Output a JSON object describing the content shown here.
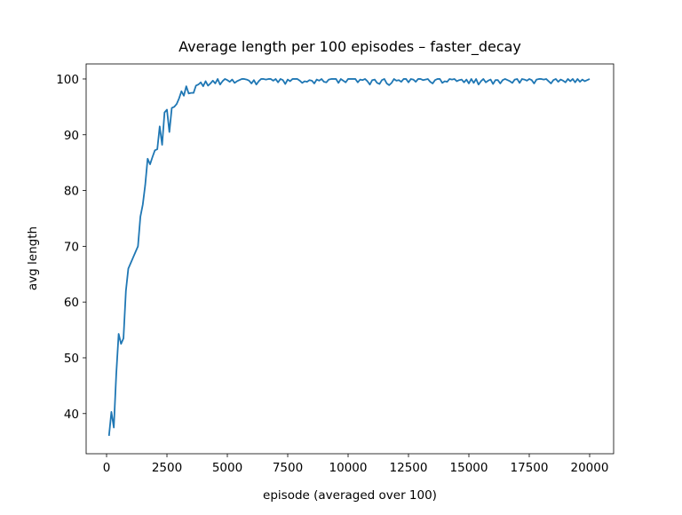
{
  "chart_data": {
    "type": "line",
    "title": "Average length per 100 episodes – faster_decay",
    "x_label": "episode (averaged over 100)",
    "y_label": "avg length",
    "x": [
      100,
      200,
      300,
      400,
      500,
      600,
      700,
      800,
      900,
      1000,
      1100,
      1200,
      1300,
      1400,
      1500,
      1600,
      1700,
      1800,
      1900,
      2000,
      2100,
      2200,
      2300,
      2400,
      2500,
      2600,
      2700,
      2800,
      2900,
      3000,
      3100,
      3200,
      3300,
      3400,
      3500,
      3600,
      3700,
      3800,
      3900,
      4000,
      4100,
      4200,
      4300,
      4400,
      4500,
      4600,
      4700,
      4800,
      4900,
      5000,
      5100,
      5200,
      5300,
      5400,
      5500,
      5600,
      5700,
      5800,
      5900,
      6000,
      6100,
      6200,
      6300,
      6400,
      6500,
      6600,
      6700,
      6800,
      6900,
      7000,
      7100,
      7200,
      7300,
      7400,
      7500,
      7600,
      7700,
      7800,
      7900,
      8000,
      8100,
      8200,
      8300,
      8400,
      8500,
      8600,
      8700,
      8800,
      8900,
      9000,
      9100,
      9200,
      9300,
      9400,
      9500,
      9600,
      9700,
      9800,
      9900,
      10000,
      10100,
      10200,
      10300,
      10400,
      10500,
      10600,
      10700,
      10800,
      10900,
      11000,
      11100,
      11200,
      11300,
      11400,
      11500,
      11600,
      11700,
      11800,
      11900,
      12000,
      12100,
      12200,
      12300,
      12400,
      12500,
      12600,
      12700,
      12800,
      12900,
      13000,
      13100,
      13200,
      13300,
      13400,
      13500,
      13600,
      13700,
      13800,
      13900,
      14000,
      14100,
      14200,
      14300,
      14400,
      14500,
      14600,
      14700,
      14800,
      14900,
      15000,
      15100,
      15200,
      15300,
      15400,
      15500,
      15600,
      15700,
      15800,
      15900,
      16000,
      16100,
      16200,
      16300,
      16400,
      16500,
      16600,
      16700,
      16800,
      16900,
      17000,
      17100,
      17200,
      17300,
      17400,
      17500,
      17600,
      17700,
      17800,
      17900,
      18000,
      18100,
      18200,
      18300,
      18400,
      18500,
      18600,
      18700,
      18800,
      18900,
      19000,
      19100,
      19200,
      19300,
      19400,
      19500,
      19600,
      19700,
      19800,
      19900,
      20000
    ],
    "series": [
      {
        "name": "avg length",
        "color": "#1f77b4",
        "values": [
          36,
          40.3,
          37.5,
          47,
          54.3,
          52.5,
          53.5,
          62,
          66,
          67,
          68,
          69,
          70,
          75.3,
          77.5,
          81,
          85.7,
          84.7,
          86,
          87.2,
          87.4,
          91.5,
          88.2,
          94,
          94.5,
          90.5,
          94.8,
          95,
          95.5,
          96.5,
          97.8,
          97,
          98.7,
          97.4,
          97.5,
          97.5,
          98.8,
          99,
          99.4,
          98.7,
          99.6,
          98.8,
          99.2,
          99.7,
          99.2,
          100,
          99,
          99.6,
          100,
          99.8,
          99.5,
          99.9,
          99.3,
          99.6,
          99.8,
          100,
          100,
          99.9,
          99.7,
          99.2,
          99.8,
          99,
          99.6,
          100,
          100,
          99.9,
          100,
          100,
          99.7,
          100,
          99.4,
          100,
          99.8,
          99.1,
          99.9,
          99.6,
          100,
          100,
          100,
          99.7,
          99.3,
          99.6,
          99.5,
          99.8,
          99.7,
          99.2,
          99.9,
          99.7,
          100,
          99.5,
          99.4,
          99.9,
          100,
          100,
          100,
          99.3,
          100,
          99.7,
          99.4,
          100,
          100,
          100,
          100,
          99.4,
          99.9,
          99.8,
          100,
          99.6,
          99,
          99.8,
          99.9,
          99.3,
          99.1,
          99.8,
          100,
          99.2,
          98.9,
          99.3,
          100,
          99.7,
          99.8,
          99.5,
          100,
          100,
          99.4,
          100,
          99.9,
          99.5,
          100,
          100,
          99.8,
          99.9,
          100,
          99.5,
          99.2,
          99.8,
          100,
          100,
          99.3,
          99.6,
          99.5,
          100,
          99.9,
          100,
          99.6,
          99.8,
          99.9,
          99.4,
          99.9,
          99.2,
          100,
          99.3,
          100,
          99,
          99.6,
          100,
          99.4,
          99.7,
          99.9,
          99.1,
          99.8,
          99.8,
          99.2,
          99.8,
          100,
          99.8,
          99.6,
          99.3,
          99.9,
          100,
          99.3,
          100,
          99.9,
          99.7,
          100,
          99.8,
          99.2,
          99.9,
          100,
          100,
          99.9,
          100,
          99.6,
          99.2,
          99.8,
          100,
          99.5,
          99.9,
          99.7,
          99.4,
          100,
          99.6,
          100,
          99.4,
          100,
          99.5,
          99.9,
          99.6,
          99.8,
          100
        ]
      }
    ],
    "xlim": [
      -846,
      20993
    ],
    "ylim": [
      32.8,
      102.7
    ],
    "xticks": [
      0,
      2500,
      5000,
      7500,
      10000,
      12500,
      15000,
      17500,
      20000
    ],
    "yticks": [
      40,
      50,
      60,
      70,
      80,
      90,
      100
    ]
  }
}
